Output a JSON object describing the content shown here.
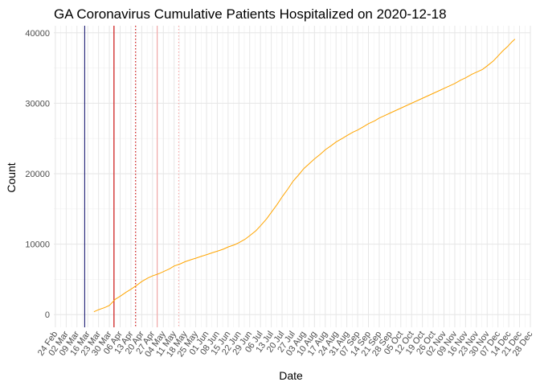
{
  "chart_data": {
    "type": "line",
    "title": "GA Coronavirus Cumulative Patients Hospitalized on 2020-12-18",
    "xlabel": "Date",
    "ylabel": "Count",
    "xlim": [
      "2020-02-23",
      "2020-12-28"
    ],
    "ylim": [
      -1800,
      41000
    ],
    "y_ticks": [
      0,
      10000,
      20000,
      30000,
      40000
    ],
    "x_ticks": [
      {
        "date": "2020-02-24",
        "label": "24 Feb"
      },
      {
        "date": "2020-03-02",
        "label": "02 Mar"
      },
      {
        "date": "2020-03-09",
        "label": "09 Mar"
      },
      {
        "date": "2020-03-16",
        "label": "16 Mar"
      },
      {
        "date": "2020-03-23",
        "label": "23 Mar"
      },
      {
        "date": "2020-03-30",
        "label": "30 Mar"
      },
      {
        "date": "2020-04-06",
        "label": "06 Apr"
      },
      {
        "date": "2020-04-13",
        "label": "13 Apr"
      },
      {
        "date": "2020-04-20",
        "label": "20 Apr"
      },
      {
        "date": "2020-04-27",
        "label": "27 Apr"
      },
      {
        "date": "2020-05-04",
        "label": "04 May"
      },
      {
        "date": "2020-05-11",
        "label": "11 May"
      },
      {
        "date": "2020-05-18",
        "label": "18 May"
      },
      {
        "date": "2020-05-25",
        "label": "25 May"
      },
      {
        "date": "2020-06-01",
        "label": "01 Jun"
      },
      {
        "date": "2020-06-08",
        "label": "08 Jun"
      },
      {
        "date": "2020-06-15",
        "label": "15 Jun"
      },
      {
        "date": "2020-06-22",
        "label": "22 Jun"
      },
      {
        "date": "2020-06-29",
        "label": "29 Jun"
      },
      {
        "date": "2020-07-06",
        "label": "06 Jul"
      },
      {
        "date": "2020-07-13",
        "label": "13 Jul"
      },
      {
        "date": "2020-07-20",
        "label": "20 Jul"
      },
      {
        "date": "2020-07-27",
        "label": "27 Jul"
      },
      {
        "date": "2020-08-03",
        "label": "03 Aug"
      },
      {
        "date": "2020-08-10",
        "label": "10 Aug"
      },
      {
        "date": "2020-08-17",
        "label": "17 Aug"
      },
      {
        "date": "2020-08-24",
        "label": "24 Aug"
      },
      {
        "date": "2020-08-31",
        "label": "31 Aug"
      },
      {
        "date": "2020-09-07",
        "label": "07 Sep"
      },
      {
        "date": "2020-09-14",
        "label": "14 Sep"
      },
      {
        "date": "2020-09-21",
        "label": "21 Sep"
      },
      {
        "date": "2020-09-28",
        "label": "28 Sep"
      },
      {
        "date": "2020-10-05",
        "label": "05 Oct"
      },
      {
        "date": "2020-10-12",
        "label": "12 Oct"
      },
      {
        "date": "2020-10-19",
        "label": "19 Oct"
      },
      {
        "date": "2020-10-26",
        "label": "26 Oct"
      },
      {
        "date": "2020-11-02",
        "label": "02 Nov"
      },
      {
        "date": "2020-11-09",
        "label": "09 Nov"
      },
      {
        "date": "2020-11-16",
        "label": "16 Nov"
      },
      {
        "date": "2020-11-23",
        "label": "23 Nov"
      },
      {
        "date": "2020-11-30",
        "label": "30 Nov"
      },
      {
        "date": "2020-12-07",
        "label": "07 Dec"
      },
      {
        "date": "2020-12-14",
        "label": "14 Dec"
      },
      {
        "date": "2020-12-21",
        "label": "21 Dec"
      },
      {
        "date": "2020-12-28",
        "label": "28 Dec"
      }
    ],
    "grid": true,
    "series": [
      {
        "color": "#FFA500",
        "points": [
          [
            "2020-03-20",
            400
          ],
          [
            "2020-03-23",
            700
          ],
          [
            "2020-03-27",
            1000
          ],
          [
            "2020-03-30",
            1300
          ],
          [
            "2020-04-03",
            2200
          ],
          [
            "2020-04-06",
            2600
          ],
          [
            "2020-04-10",
            3200
          ],
          [
            "2020-04-13",
            3600
          ],
          [
            "2020-04-17",
            4200
          ],
          [
            "2020-04-20",
            4700
          ],
          [
            "2020-04-24",
            5200
          ],
          [
            "2020-04-27",
            5500
          ],
          [
            "2020-05-01",
            5800
          ],
          [
            "2020-05-04",
            6100
          ],
          [
            "2020-05-08",
            6500
          ],
          [
            "2020-05-11",
            6900
          ],
          [
            "2020-05-15",
            7200
          ],
          [
            "2020-05-18",
            7500
          ],
          [
            "2020-05-22",
            7800
          ],
          [
            "2020-05-25",
            8000
          ],
          [
            "2020-05-29",
            8300
          ],
          [
            "2020-06-01",
            8500
          ],
          [
            "2020-06-05",
            8800
          ],
          [
            "2020-06-08",
            9000
          ],
          [
            "2020-06-12",
            9300
          ],
          [
            "2020-06-15",
            9600
          ],
          [
            "2020-06-19",
            9900
          ],
          [
            "2020-06-22",
            10200
          ],
          [
            "2020-06-26",
            10700
          ],
          [
            "2020-06-29",
            11200
          ],
          [
            "2020-07-03",
            11900
          ],
          [
            "2020-07-06",
            12600
          ],
          [
            "2020-07-10",
            13600
          ],
          [
            "2020-07-13",
            14500
          ],
          [
            "2020-07-17",
            15700
          ],
          [
            "2020-07-20",
            16700
          ],
          [
            "2020-07-24",
            17900
          ],
          [
            "2020-07-27",
            18900
          ],
          [
            "2020-07-31",
            19900
          ],
          [
            "2020-08-03",
            20700
          ],
          [
            "2020-08-07",
            21500
          ],
          [
            "2020-08-10",
            22100
          ],
          [
            "2020-08-14",
            22800
          ],
          [
            "2020-08-17",
            23400
          ],
          [
            "2020-08-21",
            24000
          ],
          [
            "2020-08-24",
            24500
          ],
          [
            "2020-08-28",
            25000
          ],
          [
            "2020-08-31",
            25400
          ],
          [
            "2020-09-04",
            25900
          ],
          [
            "2020-09-07",
            26200
          ],
          [
            "2020-09-11",
            26700
          ],
          [
            "2020-09-14",
            27100
          ],
          [
            "2020-09-18",
            27500
          ],
          [
            "2020-09-21",
            27900
          ],
          [
            "2020-09-25",
            28300
          ],
          [
            "2020-09-28",
            28600
          ],
          [
            "2020-10-02",
            29000
          ],
          [
            "2020-10-05",
            29300
          ],
          [
            "2020-10-09",
            29700
          ],
          [
            "2020-10-12",
            30000
          ],
          [
            "2020-10-16",
            30400
          ],
          [
            "2020-10-19",
            30700
          ],
          [
            "2020-10-23",
            31100
          ],
          [
            "2020-10-26",
            31400
          ],
          [
            "2020-10-30",
            31800
          ],
          [
            "2020-11-02",
            32100
          ],
          [
            "2020-11-06",
            32500
          ],
          [
            "2020-11-09",
            32800
          ],
          [
            "2020-11-13",
            33300
          ],
          [
            "2020-11-16",
            33600
          ],
          [
            "2020-11-20",
            34100
          ],
          [
            "2020-11-23",
            34400
          ],
          [
            "2020-11-27",
            34800
          ],
          [
            "2020-11-30",
            35300
          ],
          [
            "2020-12-04",
            36000
          ],
          [
            "2020-12-07",
            36700
          ],
          [
            "2020-12-10",
            37400
          ],
          [
            "2020-12-13",
            38000
          ],
          [
            "2020-12-16",
            38700
          ],
          [
            "2020-12-18",
            39100
          ]
        ]
      }
    ],
    "reference_lines": [
      {
        "date": "2020-03-14",
        "color": "#191970",
        "style": "solid"
      },
      {
        "date": "2020-04-02",
        "color": "#CC0000",
        "style": "solid"
      },
      {
        "date": "2020-04-16",
        "color": "#CC0000",
        "style": "dotted"
      },
      {
        "date": "2020-04-30",
        "color": "#F4A6A6",
        "style": "solid"
      },
      {
        "date": "2020-05-14",
        "color": "#F4A6A6",
        "style": "dotted"
      }
    ]
  }
}
